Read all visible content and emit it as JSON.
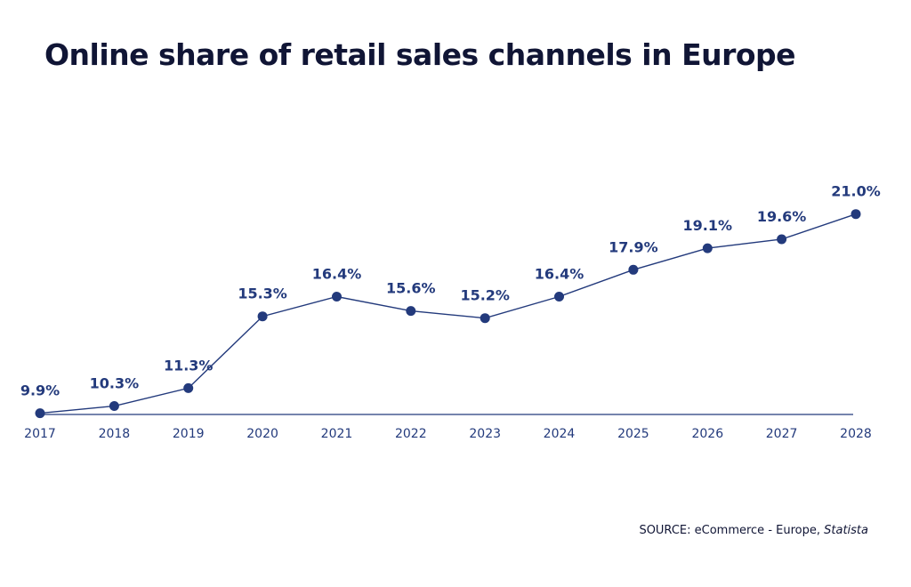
{
  "title": "Online share of retail sales channels in Europe",
  "source": {
    "prefix": "SOURCE: eCommerce - Europe, ",
    "name": "Statista"
  },
  "colors": {
    "series": "#233a7c",
    "axis": "#233a7c",
    "title": "#101535",
    "tick_text": "#233a7c"
  },
  "chart_data": {
    "type": "line",
    "title": "Online share of retail sales channels in Europe",
    "xlabel": "",
    "ylabel": "",
    "x": [
      "2017",
      "2018",
      "2019",
      "2020",
      "2021",
      "2022",
      "2023",
      "2024",
      "2025",
      "2026",
      "2027",
      "2028"
    ],
    "series": [
      {
        "values": [
          9.9,
          10.3,
          11.3,
          15.3,
          16.4,
          15.6,
          15.2,
          16.4,
          17.9,
          19.1,
          19.6,
          21.0
        ],
        "labels": [
          "9.9%",
          "10.3%",
          "11.3%",
          "15.3%",
          "16.4%",
          "15.6%",
          "15.2%",
          "16.4%",
          "17.9%",
          "19.1%",
          "19.6%",
          "21.0%"
        ]
      }
    ],
    "ylim": [
      0,
      30
    ],
    "grid": false,
    "legend": "none",
    "y_axis_visible": false
  }
}
